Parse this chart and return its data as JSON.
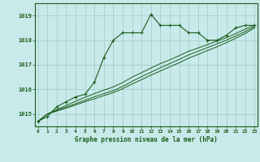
{
  "title": "Graphe pression niveau de la mer (hPa)",
  "background_color": "#c8eaea",
  "grid_color": "#a0c8c8",
  "line_color": "#1a5c1a",
  "x_labels": [
    "0",
    "1",
    "2",
    "3",
    "4",
    "5",
    "6",
    "7",
    "8",
    "9",
    "10",
    "11",
    "12",
    "13",
    "14",
    "15",
    "16",
    "17",
    "18",
    "19",
    "20",
    "21",
    "22",
    "23"
  ],
  "ylim": [
    1014.5,
    1019.5
  ],
  "yticks": [
    1015,
    1016,
    1017,
    1018,
    1019
  ],
  "series1": [
    1014.7,
    1014.9,
    1015.3,
    1015.5,
    1015.7,
    1015.8,
    1016.3,
    1017.3,
    1018.0,
    1018.3,
    1018.3,
    1018.3,
    1019.05,
    1018.6,
    1018.6,
    1018.6,
    1018.3,
    1018.3,
    1018.0,
    1018.0,
    1018.2,
    1018.5,
    1018.6,
    1018.6
  ],
  "series2": [
    1014.7,
    1015.0,
    1015.18,
    1015.35,
    1015.52,
    1015.68,
    1015.83,
    1015.97,
    1016.1,
    1016.28,
    1016.5,
    1016.68,
    1016.87,
    1017.05,
    1017.2,
    1017.37,
    1017.55,
    1017.68,
    1017.82,
    1017.97,
    1018.1,
    1018.27,
    1018.45,
    1018.6
  ],
  "series3": [
    1014.7,
    1015.0,
    1015.15,
    1015.28,
    1015.42,
    1015.56,
    1015.7,
    1015.83,
    1015.95,
    1016.12,
    1016.33,
    1016.52,
    1016.7,
    1016.88,
    1017.05,
    1017.22,
    1017.4,
    1017.55,
    1017.7,
    1017.85,
    1018.0,
    1018.17,
    1018.35,
    1018.55
  ],
  "series4": [
    1014.7,
    1015.0,
    1015.12,
    1015.24,
    1015.37,
    1015.5,
    1015.62,
    1015.75,
    1015.87,
    1016.03,
    1016.22,
    1016.4,
    1016.58,
    1016.75,
    1016.92,
    1017.08,
    1017.27,
    1017.42,
    1017.58,
    1017.73,
    1017.9,
    1018.08,
    1018.27,
    1018.5
  ]
}
